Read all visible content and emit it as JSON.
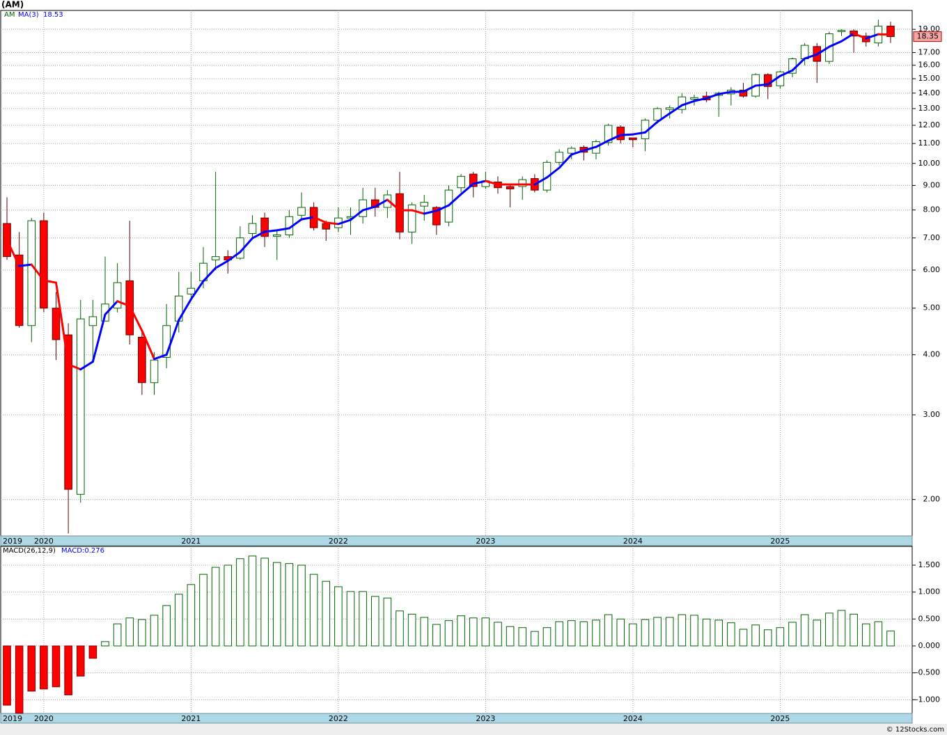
{
  "chart_data": [
    {
      "type": "candlestick",
      "title": "(AM)",
      "name": "AM",
      "log_scale": true,
      "grid": true,
      "up_color": "#006400",
      "down_color": "#ff0000",
      "categories": [
        "2019",
        null,
        null,
        "2020",
        null,
        null,
        null,
        null,
        null,
        null,
        null,
        null,
        null,
        null,
        null,
        "2021",
        null,
        null,
        null,
        null,
        null,
        null,
        null,
        null,
        null,
        null,
        null,
        "2022",
        null,
        null,
        null,
        null,
        null,
        null,
        null,
        null,
        null,
        null,
        null,
        "2023",
        null,
        null,
        null,
        null,
        null,
        null,
        null,
        null,
        null,
        null,
        null,
        "2024",
        null,
        null,
        null,
        null,
        null,
        null,
        null,
        null,
        null,
        null,
        null,
        "2025",
        null,
        null,
        null,
        null,
        null,
        null,
        null,
        null,
        null
      ],
      "open": [
        7.5,
        6.45,
        4.6,
        7.6,
        5.0,
        4.4,
        2.05,
        4.6,
        4.7,
        5.0,
        5.7,
        4.35,
        3.5,
        3.95,
        4.7,
        5.35,
        5.7,
        6.3,
        6.4,
        6.35,
        7.15,
        7.7,
        7.05,
        7.1,
        7.8,
        8.1,
        7.5,
        7.35,
        7.7,
        7.75,
        8.4,
        8.1,
        8.65,
        7.2,
        8.15,
        8.1,
        7.55,
        8.9,
        9.5,
        8.95,
        9.15,
        8.95,
        8.95,
        9.3,
        8.8,
        10.05,
        10.5,
        10.8,
        10.5,
        11.05,
        11.9,
        11.3,
        11.25,
        12.3,
        12.95,
        12.95,
        13.6,
        13.8,
        13.85,
        13.95,
        14.2,
        13.8,
        15.3,
        14.5,
        15.4,
        16.5,
        17.5,
        16.3,
        18.8,
        18.85,
        18.4,
        17.8,
        19.3
      ],
      "high": [
        8.5,
        7.2,
        7.7,
        7.9,
        5.4,
        4.65,
        5.2,
        5.2,
        6.4,
        6.2,
        7.6,
        4.5,
        4.05,
        5.1,
        5.95,
        5.95,
        6.7,
        9.6,
        6.6,
        7.4,
        7.8,
        7.9,
        7.25,
        8.0,
        8.7,
        8.3,
        7.6,
        8.1,
        8.1,
        8.9,
        8.9,
        8.8,
        9.6,
        8.3,
        8.6,
        8.15,
        9.0,
        9.5,
        9.6,
        9.6,
        9.4,
        9.0,
        9.4,
        9.5,
        10.15,
        10.7,
        10.85,
        10.9,
        11.2,
        12.1,
        12.0,
        11.3,
        12.4,
        13.1,
        13.2,
        14.0,
        13.9,
        14.1,
        14.1,
        14.4,
        14.7,
        15.4,
        15.4,
        15.6,
        16.6,
        17.8,
        17.8,
        18.8,
        19.0,
        19.0,
        18.7,
        19.9,
        19.7
      ],
      "low": [
        6.3,
        4.55,
        4.25,
        4.9,
        3.9,
        1.7,
        1.97,
        3.9,
        4.8,
        4.9,
        4.2,
        3.3,
        3.3,
        3.75,
        4.45,
        5.2,
        5.5,
        6.0,
        5.9,
        6.3,
        7.0,
        6.7,
        6.3,
        7.0,
        7.6,
        7.25,
        6.9,
        7.2,
        7.1,
        7.5,
        7.75,
        7.7,
        6.95,
        6.8,
        7.6,
        7.1,
        7.4,
        8.7,
        8.5,
        8.85,
        8.65,
        8.1,
        8.4,
        8.7,
        8.7,
        9.9,
        10.2,
        10.15,
        10.2,
        10.9,
        11.0,
        10.8,
        10.6,
        12.1,
        12.4,
        12.7,
        13.2,
        13.4,
        12.5,
        13.2,
        13.7,
        13.7,
        13.6,
        14.3,
        15.1,
        16.0,
        14.7,
        16.1,
        18.4,
        17.0,
        17.5,
        17.5,
        17.8
      ],
      "close": [
        6.4,
        4.6,
        7.6,
        5.0,
        4.3,
        2.1,
        4.75,
        4.8,
        5.1,
        5.65,
        4.4,
        3.5,
        3.9,
        4.6,
        5.3,
        5.5,
        6.2,
        6.4,
        6.3,
        7.0,
        7.5,
        7.05,
        7.1,
        7.75,
        8.1,
        7.35,
        7.3,
        7.7,
        7.75,
        8.4,
        8.1,
        8.6,
        7.2,
        8.2,
        8.3,
        7.45,
        8.8,
        9.4,
        8.95,
        9.2,
        8.9,
        8.85,
        9.25,
        8.8,
        10.05,
        10.55,
        10.75,
        10.55,
        11.1,
        12.0,
        11.2,
        11.2,
        12.3,
        13.0,
        13.05,
        13.75,
        13.7,
        13.55,
        14.0,
        14.2,
        13.8,
        15.3,
        14.45,
        15.5,
        16.5,
        17.6,
        16.3,
        18.6,
        18.9,
        18.4,
        17.9,
        19.3,
        18.35
      ],
      "overlay": {
        "name": "MA(3)",
        "up_color": "#0000ff",
        "down_color": "#ff0000",
        "values": [
          6.93,
          6.12,
          6.16,
          5.71,
          5.65,
          3.82,
          3.73,
          3.87,
          4.85,
          5.17,
          5.05,
          4.49,
          3.92,
          4.0,
          4.72,
          5.22,
          5.69,
          6.06,
          6.27,
          6.54,
          6.99,
          7.21,
          7.26,
          7.33,
          7.65,
          7.73,
          7.53,
          7.48,
          7.63,
          7.99,
          8.13,
          8.4,
          7.99,
          7.99,
          7.86,
          7.97,
          8.18,
          8.63,
          9.07,
          9.19,
          9.04,
          9.04,
          9.04,
          9.04,
          9.35,
          9.79,
          10.43,
          10.64,
          10.82,
          11.15,
          11.45,
          11.49,
          11.6,
          12.2,
          12.7,
          13.21,
          13.48,
          13.66,
          13.94,
          14.08,
          14.1,
          14.51,
          14.6,
          15.2,
          15.61,
          16.52,
          16.85,
          17.48,
          17.95,
          18.62,
          18.19,
          18.56,
          18.53
        ]
      },
      "ylim": [
        1.68,
        20.8
      ],
      "yticks": [
        {
          "value": 2,
          "label": "2.00"
        },
        {
          "value": 3,
          "label": "3.00"
        },
        {
          "value": 4,
          "label": "4.00"
        },
        {
          "value": 5,
          "label": "5.00"
        },
        {
          "value": 6,
          "label": "6.00"
        },
        {
          "value": 7,
          "label": "7.00"
        },
        {
          "value": 8,
          "label": "8.00"
        },
        {
          "value": 9,
          "label": "9.00"
        },
        {
          "value": 10,
          "label": "10.00"
        },
        {
          "value": 11,
          "label": "11.00"
        },
        {
          "value": 12,
          "label": "12.00"
        },
        {
          "value": 13,
          "label": "13.00"
        },
        {
          "value": 14,
          "label": "14.00"
        },
        {
          "value": 15,
          "label": "15.00"
        },
        {
          "value": 16,
          "label": "16.00"
        },
        {
          "value": 17,
          "label": "17.00"
        },
        {
          "value": 19,
          "label": "19.00"
        }
      ]
    },
    {
      "type": "bar",
      "title": "MACD(26,12,9)",
      "legend": "MACD:0.276",
      "grid": true,
      "pos_color": "#006400",
      "neg_color": "#ff0000",
      "categories": [
        "2019",
        null,
        null,
        "2020",
        null,
        null,
        null,
        null,
        null,
        null,
        null,
        null,
        null,
        null,
        null,
        "2021",
        null,
        null,
        null,
        null,
        null,
        null,
        null,
        null,
        null,
        null,
        null,
        "2022",
        null,
        null,
        null,
        null,
        null,
        null,
        null,
        null,
        null,
        null,
        null,
        "2023",
        null,
        null,
        null,
        null,
        null,
        null,
        null,
        null,
        null,
        null,
        null,
        "2024",
        null,
        null,
        null,
        null,
        null,
        null,
        null,
        null,
        null,
        null,
        null,
        "2025",
        null,
        null,
        null,
        null,
        null,
        null,
        null,
        null,
        null
      ],
      "values": [
        -1.1,
        -1.25,
        -0.84,
        -0.8,
        -0.76,
        -0.91,
        -0.56,
        -0.23,
        0.08,
        0.41,
        0.52,
        0.49,
        0.57,
        0.75,
        0.96,
        1.14,
        1.33,
        1.46,
        1.5,
        1.62,
        1.67,
        1.63,
        1.55,
        1.53,
        1.5,
        1.33,
        1.2,
        1.1,
        1.01,
        1.01,
        0.92,
        0.89,
        0.65,
        0.59,
        0.53,
        0.4,
        0.47,
        0.56,
        0.52,
        0.52,
        0.44,
        0.36,
        0.34,
        0.27,
        0.34,
        0.45,
        0.47,
        0.45,
        0.48,
        0.58,
        0.5,
        0.41,
        0.49,
        0.53,
        0.53,
        0.58,
        0.57,
        0.5,
        0.48,
        0.43,
        0.31,
        0.39,
        0.3,
        0.34,
        0.44,
        0.58,
        0.48,
        0.61,
        0.66,
        0.59,
        0.41,
        0.45,
        0.276
      ],
      "ylim": [
        -1.254,
        1.849
      ],
      "yticks": [
        {
          "value": -1,
          "label": "-1.000"
        },
        {
          "value": -0.5,
          "label": "-0.500"
        },
        {
          "value": 0,
          "label": "0.000"
        },
        {
          "value": 0.5,
          "label": "0.500"
        },
        {
          "value": 1,
          "label": "1.000"
        },
        {
          "value": 1.5,
          "label": "1.500"
        }
      ]
    }
  ],
  "credit": "© 12Stocks.com"
}
